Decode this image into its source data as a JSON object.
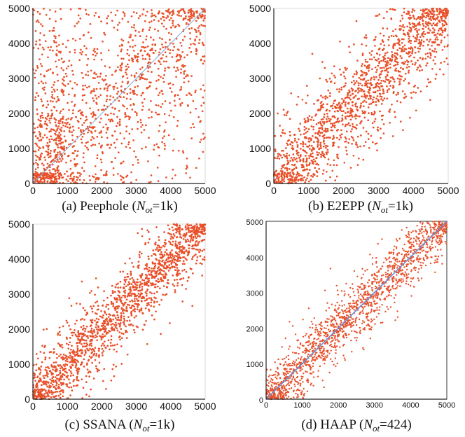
{
  "colors": {
    "point": "#e8502a",
    "diagonal": "#8aa6cf",
    "diagonal_d": "#6b8fd6",
    "axis": "#222222",
    "frame": "#cfcfcf"
  },
  "chart_data": [
    {
      "type": "scatter",
      "caption_prefix": "(a) Peephole (",
      "caption_sym": "N",
      "caption_sub": "ot",
      "caption_suffix": "=1k)",
      "xlim": [
        0,
        5000
      ],
      "ylim": [
        0,
        5000
      ],
      "xticks": [
        "0",
        "1000",
        "2000",
        "3000",
        "4000",
        "5000"
      ],
      "yticks": [
        "0",
        "1000",
        "2000",
        "3000",
        "4000",
        "5000"
      ],
      "diagonal": true,
      "spread": 2200,
      "point_count": 1500,
      "x": [
        120,
        240,
        310,
        420,
        520,
        650,
        780,
        860,
        950,
        1100,
        1250,
        1400,
        1550,
        1700,
        1850,
        2000,
        2150,
        2300,
        2450,
        2600,
        2750,
        2900,
        3050,
        3200,
        3350,
        3500,
        3650,
        3800,
        3950,
        4100,
        4250,
        4400,
        4550,
        4700,
        4850
      ],
      "y": [
        300,
        150,
        520,
        260,
        610,
        380,
        900,
        700,
        1200,
        650,
        1900,
        1400,
        2300,
        1600,
        2700,
        2100,
        2500,
        3100,
        1900,
        2900,
        3400,
        2600,
        3700,
        3000,
        3300,
        4100,
        3500,
        2900,
        4300,
        3900,
        4500,
        3600,
        4700,
        4400,
        4800
      ]
    },
    {
      "type": "scatter",
      "caption_prefix": "(b) E2EPP (",
      "caption_sym": "N",
      "caption_sub": "ot",
      "caption_suffix": "=1k)",
      "xlim": [
        0,
        5000
      ],
      "ylim": [
        0,
        5000
      ],
      "xticks": [
        "0",
        "1000",
        "2000",
        "3000",
        "4000",
        "5000"
      ],
      "yticks": [
        "0",
        "1000",
        "2000",
        "3000",
        "4000",
        "5000"
      ],
      "diagonal": false,
      "spread": 1300,
      "point_count": 1500,
      "x": [
        100,
        250,
        400,
        550,
        700,
        850,
        1000,
        1150,
        1300,
        1450,
        1600,
        1750,
        1900,
        2050,
        2200,
        2350,
        2500,
        2650,
        2800,
        2950,
        3100,
        3250,
        3400,
        3550,
        3700,
        3850,
        4000,
        4150,
        4300,
        4450,
        4600,
        4750,
        4900
      ],
      "y": [
        200,
        350,
        300,
        650,
        800,
        700,
        1200,
        1000,
        1500,
        1300,
        1800,
        1600,
        2100,
        1900,
        2400,
        2200,
        2700,
        2500,
        3000,
        2800,
        3300,
        3100,
        3600,
        3400,
        3900,
        3700,
        4200,
        4000,
        4500,
        4300,
        4700,
        4650,
        4850
      ]
    },
    {
      "type": "scatter",
      "caption_prefix": "(c) SSANA (",
      "caption_sym": "N",
      "caption_sub": "ot",
      "caption_suffix": "=1k)",
      "xlim": [
        0,
        5000
      ],
      "ylim": [
        0,
        5000
      ],
      "xticks": [
        "0",
        "1000",
        "2000",
        "3000",
        "4000",
        "5000"
      ],
      "yticks": [
        "0",
        "1000",
        "2000",
        "3000",
        "4000",
        "5000"
      ],
      "diagonal": false,
      "spread": 1000,
      "point_count": 1600,
      "x": [
        100,
        250,
        400,
        550,
        700,
        850,
        1000,
        1150,
        1300,
        1450,
        1600,
        1750,
        1900,
        2050,
        2200,
        2350,
        2500,
        2650,
        2800,
        2950,
        3100,
        3250,
        3400,
        3550,
        3700,
        3850,
        4000,
        4150,
        4300,
        4450,
        4600,
        4750,
        4900
      ],
      "y": [
        250,
        400,
        500,
        700,
        850,
        900,
        1150,
        1200,
        1450,
        1500,
        1750,
        1800,
        2050,
        2100,
        2350,
        2400,
        2650,
        2700,
        2950,
        3000,
        3250,
        3300,
        3550,
        3600,
        3850,
        3900,
        4100,
        4200,
        4350,
        4500,
        4600,
        4750,
        4850
      ]
    },
    {
      "type": "scatter",
      "caption_prefix": "(d) HAAP (",
      "caption_sym": "N",
      "caption_sub": "ot",
      "caption_suffix": "=424)",
      "xlim": [
        0,
        5000
      ],
      "ylim": [
        0,
        5000
      ],
      "xticks": [
        "0",
        "1000",
        "2000",
        "3000",
        "4000",
        "5000"
      ],
      "yticks": [
        "0",
        "1000",
        "2000",
        "3000",
        "4000",
        "5000"
      ],
      "diagonal": true,
      "spread": 800,
      "point_count": 1600,
      "x": [
        100,
        250,
        400,
        550,
        700,
        850,
        1000,
        1150,
        1300,
        1450,
        1600,
        1750,
        1900,
        2050,
        2200,
        2350,
        2500,
        2650,
        2800,
        2950,
        3100,
        3250,
        3400,
        3550,
        3700,
        3850,
        4000,
        4150,
        4300,
        4450,
        4600,
        4750,
        4900
      ],
      "y": [
        150,
        300,
        450,
        600,
        700,
        900,
        1000,
        1200,
        1300,
        1450,
        1650,
        1700,
        1950,
        2000,
        2250,
        2300,
        2550,
        2600,
        2850,
        2950,
        3100,
        3300,
        3350,
        3600,
        3650,
        3900,
        3950,
        4200,
        4250,
        4500,
        4550,
        4800,
        4850
      ]
    }
  ]
}
